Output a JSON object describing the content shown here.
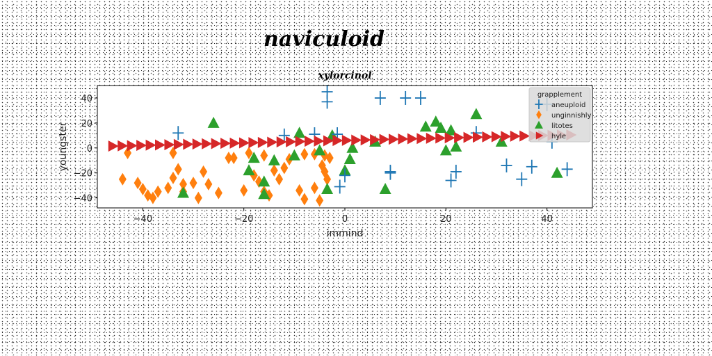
{
  "chart_data": {
    "type": "scatter",
    "title": "naviculoid",
    "subtitle": "xylorcinol",
    "xlabel": "immind",
    "ylabel": "youngster",
    "xlim": [
      -49,
      49
    ],
    "ylim": [
      -48,
      50
    ],
    "xticks": [
      -40,
      -20,
      0,
      20,
      40
    ],
    "yticks": [
      40,
      20,
      0,
      -20,
      -40
    ],
    "grid": false,
    "legend": {
      "title": "grapplement",
      "placement": "top-right"
    },
    "series": [
      {
        "name": "aneuploid",
        "marker": "plus",
        "color": "#1f77b4",
        "points": [
          [
            -3.5,
            45
          ],
          [
            -3.5,
            37
          ],
          [
            7,
            40
          ],
          [
            12,
            40
          ],
          [
            15,
            40
          ],
          [
            -33,
            12
          ],
          [
            -12,
            10
          ],
          [
            -6,
            11
          ],
          [
            -1.5,
            11
          ],
          [
            -1,
            -31
          ],
          [
            0,
            -22
          ],
          [
            9,
            -19
          ],
          [
            9,
            -20
          ],
          [
            21,
            -26
          ],
          [
            22,
            -19
          ],
          [
            32,
            -14
          ],
          [
            35,
            -25
          ],
          [
            37,
            -15
          ],
          [
            44,
            -17
          ],
          [
            40,
            35
          ],
          [
            41,
            5
          ],
          [
            26,
            12
          ]
        ]
      },
      {
        "name": "unginnishly",
        "marker": "diamond",
        "color": "#ff7f0e",
        "points": [
          [
            -44,
            -25
          ],
          [
            -43,
            -4
          ],
          [
            -41,
            -28
          ],
          [
            -40,
            -33
          ],
          [
            -39,
            -38
          ],
          [
            -38,
            -40
          ],
          [
            -37,
            -35
          ],
          [
            -35,
            -32
          ],
          [
            -34,
            -24
          ],
          [
            -34,
            -4
          ],
          [
            -33,
            -17
          ],
          [
            -32,
            -29
          ],
          [
            -32,
            -35
          ],
          [
            -30,
            -28
          ],
          [
            -29,
            -40
          ],
          [
            -28,
            -19
          ],
          [
            -27,
            -29
          ],
          [
            -25,
            -36
          ],
          [
            -23,
            -8
          ],
          [
            -22,
            -8
          ],
          [
            -20,
            -34
          ],
          [
            -19,
            -4
          ],
          [
            -18,
            -22
          ],
          [
            -17,
            -27
          ],
          [
            -16,
            -35
          ],
          [
            -15,
            -38
          ],
          [
            -14,
            -18
          ],
          [
            -13,
            -25
          ],
          [
            -12,
            -16
          ],
          [
            -11,
            -9
          ],
          [
            -9,
            -34
          ],
          [
            -8,
            -41
          ],
          [
            -8,
            -5
          ],
          [
            -6,
            -32
          ],
          [
            -6,
            -5
          ],
          [
            -5,
            -42
          ],
          [
            -4.5,
            -14
          ],
          [
            -4,
            -19
          ],
          [
            -3.5,
            -25
          ],
          [
            -3,
            -8
          ],
          [
            -4,
            -6
          ],
          [
            -16,
            -6
          ]
        ]
      },
      {
        "name": "litotes",
        "marker": "triangle",
        "color": "#2ca02c",
        "points": [
          [
            -32,
            -36
          ],
          [
            -26,
            20
          ],
          [
            -19,
            -18
          ],
          [
            -18,
            -8
          ],
          [
            -16,
            -37
          ],
          [
            -16,
            -27
          ],
          [
            -10,
            -6
          ],
          [
            -5,
            -2
          ],
          [
            -3.5,
            -33
          ],
          [
            -2.5,
            10
          ],
          [
            0,
            -18
          ],
          [
            1,
            -9
          ],
          [
            1.5,
            0
          ],
          [
            6,
            5
          ],
          [
            8,
            -33
          ],
          [
            16,
            17
          ],
          [
            18,
            21
          ],
          [
            19,
            16
          ],
          [
            20,
            -2
          ],
          [
            21,
            14
          ],
          [
            22,
            1
          ],
          [
            26,
            27
          ],
          [
            31,
            5
          ],
          [
            42,
            -20
          ],
          [
            -9,
            12
          ],
          [
            -14,
            -10
          ]
        ]
      },
      {
        "name": "hyle",
        "marker": "triangle-right",
        "color": "#d62728",
        "xstart": -46,
        "xstep": 1.85,
        "ystart": 1.5,
        "yend": 10.5,
        "count": 50
      }
    ]
  }
}
